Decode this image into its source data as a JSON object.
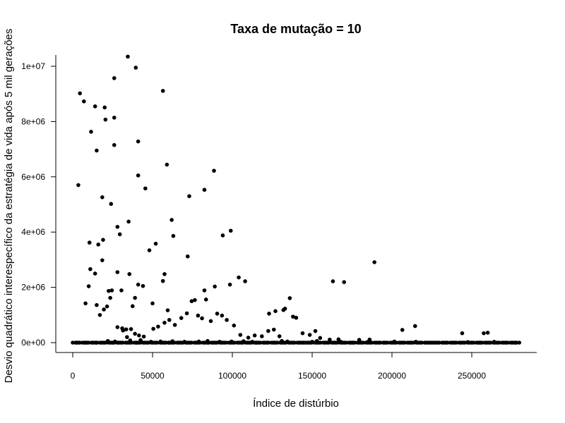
{
  "chart_data": {
    "type": "scatter",
    "title": "Taxa de mutação = 10",
    "xlabel": "Índice de distúrbio",
    "ylabel": "Desvio quadrático interespecífico da estratégia de vida após 5 mil gerações",
    "xlim": [
      0,
      280000
    ],
    "ylim": [
      0,
      10400000
    ],
    "x_ticks": [
      0,
      50000,
      100000,
      150000,
      200000,
      250000
    ],
    "x_tick_labels": [
      "0",
      "50000",
      "100000",
      "150000",
      "200000",
      "250000"
    ],
    "y_ticks": [
      0,
      2000000,
      4000000,
      6000000,
      8000000,
      10000000
    ],
    "y_tick_labels": [
      "0e+00",
      "2e+06",
      "4e+06",
      "6e+06",
      "8e+06",
      "1e+07"
    ],
    "grid": false,
    "marker_color": "#000000",
    "series": [
      {
        "x": [
          34500,
          39500,
          26000,
          4500,
          56500,
          7000,
          14000,
          20000,
          26000,
          20500,
          11500,
          41000,
          26000,
          15000,
          59000,
          41000,
          88500,
          3500,
          45500,
          73000,
          82500,
          18500,
          24000,
          62000,
          35000,
          28000,
          29500,
          99000,
          94000,
          63000,
          10500,
          16000,
          19000,
          52000,
          48000,
          72000,
          189000,
          56500,
          18500,
          11000,
          28000,
          35500,
          14000,
          57500,
          104000,
          163000,
          170000,
          108000,
          8000,
          10000,
          30500,
          82500,
          41000,
          39000,
          44000,
          89000,
          24500,
          98500,
          83500,
          59500,
          37500,
          50000,
          23500,
          76500,
          15000,
          19500,
          21500,
          22500,
          136000,
          133000,
          132000,
          127000,
          123000,
          138000,
          17000,
          28000,
          33500,
          36500,
          31500,
          31000,
          34000,
          41500,
          39000,
          44500,
          50500,
          53500,
          57500,
          60500,
          64000,
          68000,
          71500,
          74500,
          78500,
          81000,
          86500,
          90500,
          93500,
          96500,
          101000,
          105000,
          110000,
          114000,
          118500,
          122500,
          126000,
          129500,
          140000,
          144000,
          148500,
          152000,
          155000,
          161000,
          166500,
          179500,
          186000,
          206500,
          214500,
          244000,
          257500,
          260000,
          22000,
          26500,
          36000,
          42500,
          49000,
          55000,
          62500,
          70000,
          79000,
          84500,
          92000,
          99500,
          107000,
          112500,
          131000,
          134500,
          150000,
          153000,
          168000,
          184500,
          201500,
          215000,
          247500,
          264000,
          2000,
          8000,
          15000,
          25000,
          40000,
          60000,
          85000,
          115000,
          145000,
          175000,
          195000,
          225000,
          255000,
          278000
        ],
        "y": [
          10350000,
          9950000,
          9570000,
          9020000,
          9110000,
          8730000,
          8550000,
          8510000,
          8140000,
          8070000,
          7630000,
          7280000,
          7150000,
          6950000,
          6440000,
          6050000,
          6220000,
          5700000,
          5580000,
          5300000,
          5530000,
          5260000,
          5020000,
          4440000,
          4380000,
          4190000,
          3920000,
          4050000,
          3880000,
          3860000,
          3620000,
          3550000,
          3720000,
          3580000,
          3340000,
          3120000,
          2910000,
          2230000,
          2980000,
          2660000,
          2550000,
          2480000,
          2500000,
          2480000,
          2360000,
          2220000,
          2190000,
          2220000,
          1420000,
          2040000,
          1890000,
          1890000,
          2100000,
          1620000,
          2050000,
          2030000,
          1890000,
          2100000,
          1560000,
          1170000,
          1320000,
          1420000,
          1620000,
          1540000,
          1360000,
          1200000,
          1310000,
          1870000,
          1610000,
          1230000,
          1180000,
          1140000,
          1050000,
          940000,
          1000000,
          560000,
          480000,
          490000,
          440000,
          520000,
          200000,
          260000,
          320000,
          220000,
          500000,
          580000,
          720000,
          820000,
          640000,
          890000,
          1060000,
          1500000,
          980000,
          880000,
          780000,
          1050000,
          980000,
          820000,
          620000,
          280000,
          180000,
          260000,
          230000,
          420000,
          470000,
          230000,
          900000,
          340000,
          280000,
          420000,
          170000,
          110000,
          120000,
          100000,
          110000,
          460000,
          600000,
          340000,
          340000,
          360000,
          60000,
          40000,
          80000,
          90000,
          30000,
          40000,
          50000,
          30000,
          40000,
          60000,
          30000,
          40000,
          50000,
          30000,
          60000,
          40000,
          30000,
          60000,
          30000,
          20000,
          40000,
          30000,
          20000,
          30000,
          0,
          0,
          0,
          0,
          0,
          0,
          0,
          0,
          0,
          0,
          0,
          0,
          0,
          0
        ]
      }
    ]
  }
}
